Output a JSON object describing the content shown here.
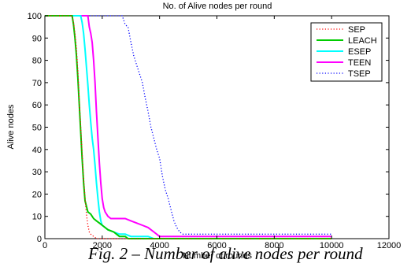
{
  "caption": "Fig. 2 – Number of alive nodes per round",
  "chart_data": {
    "type": "line",
    "title": "No. of Alive nodes per round",
    "xlabel": "Number of rounds",
    "ylabel": "Alive nodes",
    "xlim": [
      0,
      12000
    ],
    "ylim": [
      0,
      100
    ],
    "xticks": [
      0,
      2000,
      4000,
      6000,
      8000,
      10000,
      12000
    ],
    "yticks": [
      0,
      10,
      20,
      30,
      40,
      50,
      60,
      70,
      80,
      90,
      100
    ],
    "grid": false,
    "legend_position": "top-right",
    "series": [
      {
        "name": "SEP",
        "color": "#ff0000",
        "style": "dotted",
        "x": [
          0,
          950,
          1000,
          1050,
          1100,
          1150,
          1200,
          1250,
          1300,
          1350,
          1400,
          1450,
          1500,
          1550,
          1600,
          1700,
          1800,
          1900,
          2000,
          10000
        ],
        "y": [
          100,
          100,
          97,
          92,
          85,
          75,
          62,
          50,
          38,
          27,
          18,
          11,
          6,
          3,
          2,
          1,
          0,
          0,
          0,
          0
        ]
      },
      {
        "name": "LEACH",
        "color": "#00cc00",
        "style": "solid",
        "x": [
          0,
          950,
          1000,
          1050,
          1100,
          1150,
          1200,
          1250,
          1300,
          1350,
          1400,
          1500,
          1600,
          1700,
          1800,
          1900,
          2000,
          2100,
          2200,
          2400,
          2500,
          2600,
          2800,
          2900,
          10000
        ],
        "y": [
          100,
          100,
          96,
          90,
          82,
          72,
          60,
          48,
          36,
          25,
          17,
          12,
          11,
          9,
          8,
          7,
          6,
          5,
          4,
          3,
          2,
          1,
          1,
          0,
          0
        ]
      },
      {
        "name": "ESEP",
        "color": "#00ffff",
        "style": "solid",
        "x": [
          0,
          1250,
          1300,
          1350,
          1400,
          1450,
          1500,
          1550,
          1600,
          1650,
          1700,
          1750,
          1800,
          1850,
          1900,
          1950,
          2000,
          2100,
          2200,
          2400,
          2600,
          2800,
          3000,
          3200,
          3400,
          3600,
          3800,
          10000
        ],
        "y": [
          100,
          100,
          97,
          92,
          85,
          77,
          69,
          60,
          52,
          45,
          40,
          33,
          25,
          18,
          12,
          8,
          6,
          5,
          4,
          3,
          2,
          2,
          1,
          1,
          1,
          1,
          0,
          0
        ]
      },
      {
        "name": "TEEN",
        "color": "#ff00ff",
        "style": "solid",
        "x": [
          0,
          1500,
          1550,
          1600,
          1650,
          1700,
          1750,
          1800,
          1850,
          1900,
          1950,
          2000,
          2050,
          2100,
          2200,
          2300,
          2400,
          2600,
          2800,
          3000,
          3200,
          3400,
          3600,
          3800,
          4000,
          10000
        ],
        "y": [
          100,
          100,
          95,
          92,
          88,
          80,
          70,
          57,
          45,
          34,
          25,
          18,
          14,
          12,
          10,
          9,
          9,
          9,
          9,
          8,
          7,
          6,
          5,
          3,
          1,
          1
        ]
      },
      {
        "name": "TSEP",
        "color": "#0000ff",
        "style": "dotted",
        "x": [
          0,
          2700,
          2800,
          2900,
          3000,
          3100,
          3200,
          3300,
          3400,
          3500,
          3600,
          3700,
          3800,
          3900,
          4000,
          4100,
          4200,
          4300,
          4400,
          4500,
          4600,
          4700,
          4800,
          5000,
          5500,
          6000,
          8000,
          10000
        ],
        "y": [
          100,
          100,
          96,
          95,
          88,
          82,
          78,
          74,
          70,
          63,
          57,
          50,
          45,
          40,
          36,
          28,
          22,
          18,
          13,
          8,
          5,
          3,
          2,
          2,
          2,
          2,
          2,
          2
        ]
      }
    ]
  }
}
